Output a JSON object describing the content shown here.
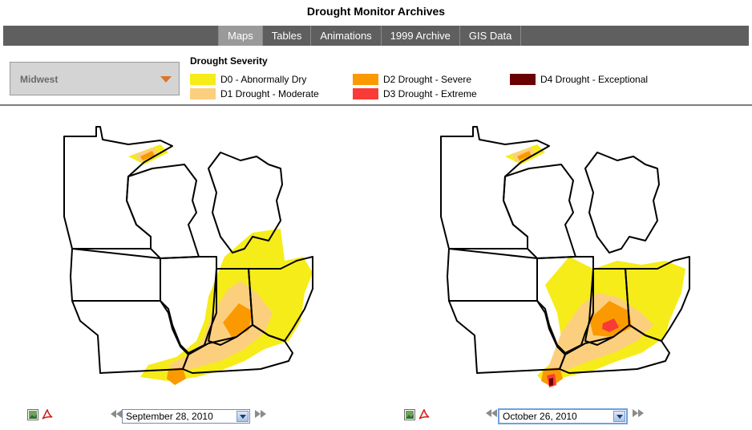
{
  "header": {
    "title": "Drought Monitor Archives"
  },
  "nav": {
    "tabs": [
      {
        "label": "Maps",
        "active": true
      },
      {
        "label": "Tables",
        "active": false
      },
      {
        "label": "Animations",
        "active": false
      },
      {
        "label": "1999 Archive",
        "active": false
      },
      {
        "label": "GIS Data",
        "active": false
      }
    ]
  },
  "region": {
    "selected": "Midwest"
  },
  "legend": {
    "title": "Drought Severity",
    "items": [
      {
        "label": "D0 - Abnormally Dry",
        "color": "#f5ec1a"
      },
      {
        "label": "D1 Drought - Moderate",
        "color": "#fccf7f"
      },
      {
        "label": "D2 Drought - Severe",
        "color": "#fb9a00"
      },
      {
        "label": "D3 Drought - Extreme",
        "color": "#f93a37"
      },
      {
        "label": "D4 Drought - Exceptional",
        "color": "#6b0000"
      }
    ]
  },
  "maps": [
    {
      "date": "September 28, 2010"
    },
    {
      "date": "October 26, 2010"
    }
  ],
  "icons": {
    "image": "image-icon",
    "pdf": "pdf-icon",
    "prev": "rewind-icon",
    "next": "fast-forward-icon"
  }
}
